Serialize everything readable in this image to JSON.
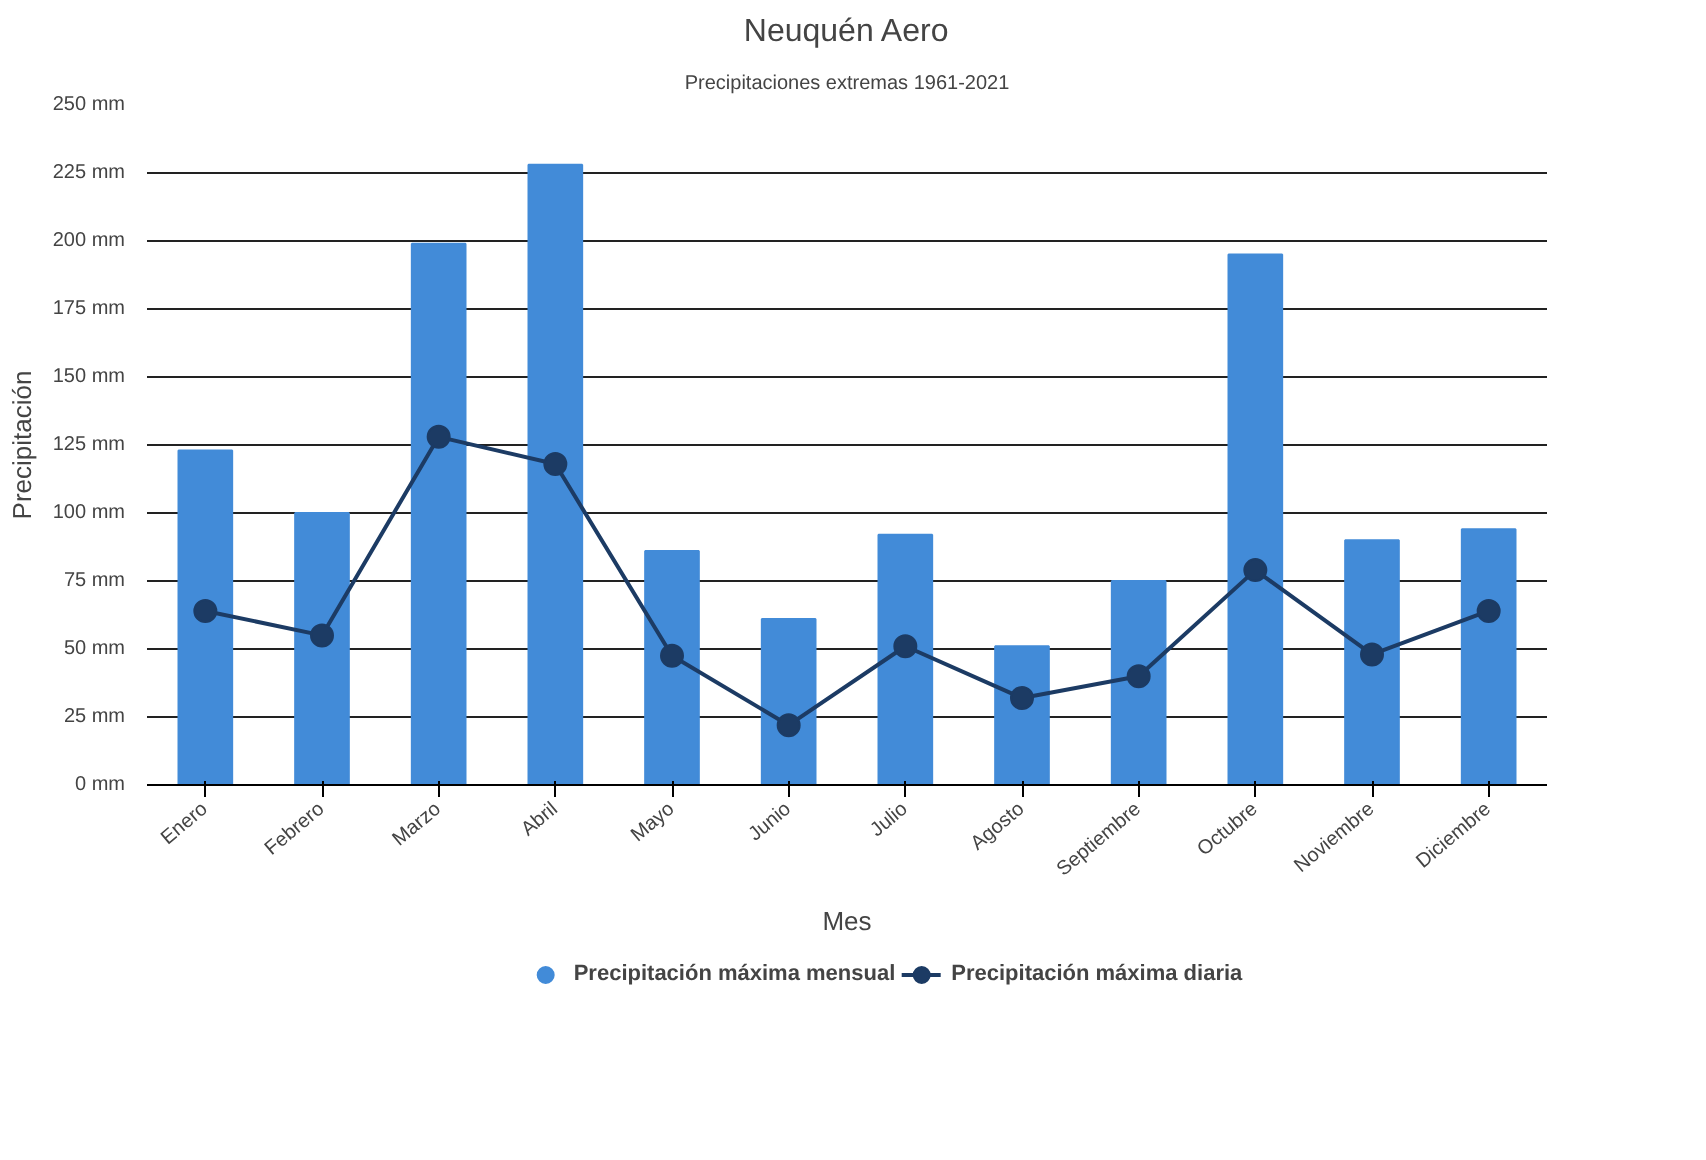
{
  "chart_data": {
    "type": "bar",
    "title": "Neuquén Aero",
    "subtitle": "Precipitaciones extremas 1961-2021",
    "xlabel": "Mes",
    "ylabel": "Precipitación",
    "categories": [
      "Enero",
      "Febrero",
      "Marzo",
      "Abril",
      "Mayo",
      "Junio",
      "Julio",
      "Agosto",
      "Septiembre",
      "Octubre",
      "Noviembre",
      "Diciembre"
    ],
    "series": [
      {
        "name": "Precipitación máxima mensual",
        "color": "#428bd8",
        "values": [
          123,
          100,
          199,
          228,
          86,
          61,
          92,
          51,
          75,
          195,
          90,
          94
        ]
      },
      {
        "name": "Precipitación máxima diaria",
        "color": "#1c3b64",
        "type": "line",
        "values": [
          64,
          55,
          128,
          118,
          47.5,
          22,
          51,
          32,
          40,
          79,
          48,
          64
        ]
      }
    ],
    "ylim": [
      0,
      250
    ],
    "yticks": [
      {
        "value": 0,
        "label": "0 mm"
      },
      {
        "value": 25,
        "label": "25 mm"
      },
      {
        "value": 50,
        "label": "50 mm"
      },
      {
        "value": 75,
        "label": "75 mm"
      },
      {
        "value": 100,
        "label": "100 mm"
      },
      {
        "value": 125,
        "label": "125 mm"
      },
      {
        "value": 150,
        "label": "150 mm"
      },
      {
        "value": 175,
        "label": "175 mm"
      },
      {
        "value": 200,
        "label": "200 mm"
      },
      {
        "value": 225,
        "label": "225 mm"
      },
      {
        "value": 250,
        "label": "250 mm"
      }
    ],
    "grid": "y",
    "legend": "bottom",
    "marker": "circle"
  }
}
